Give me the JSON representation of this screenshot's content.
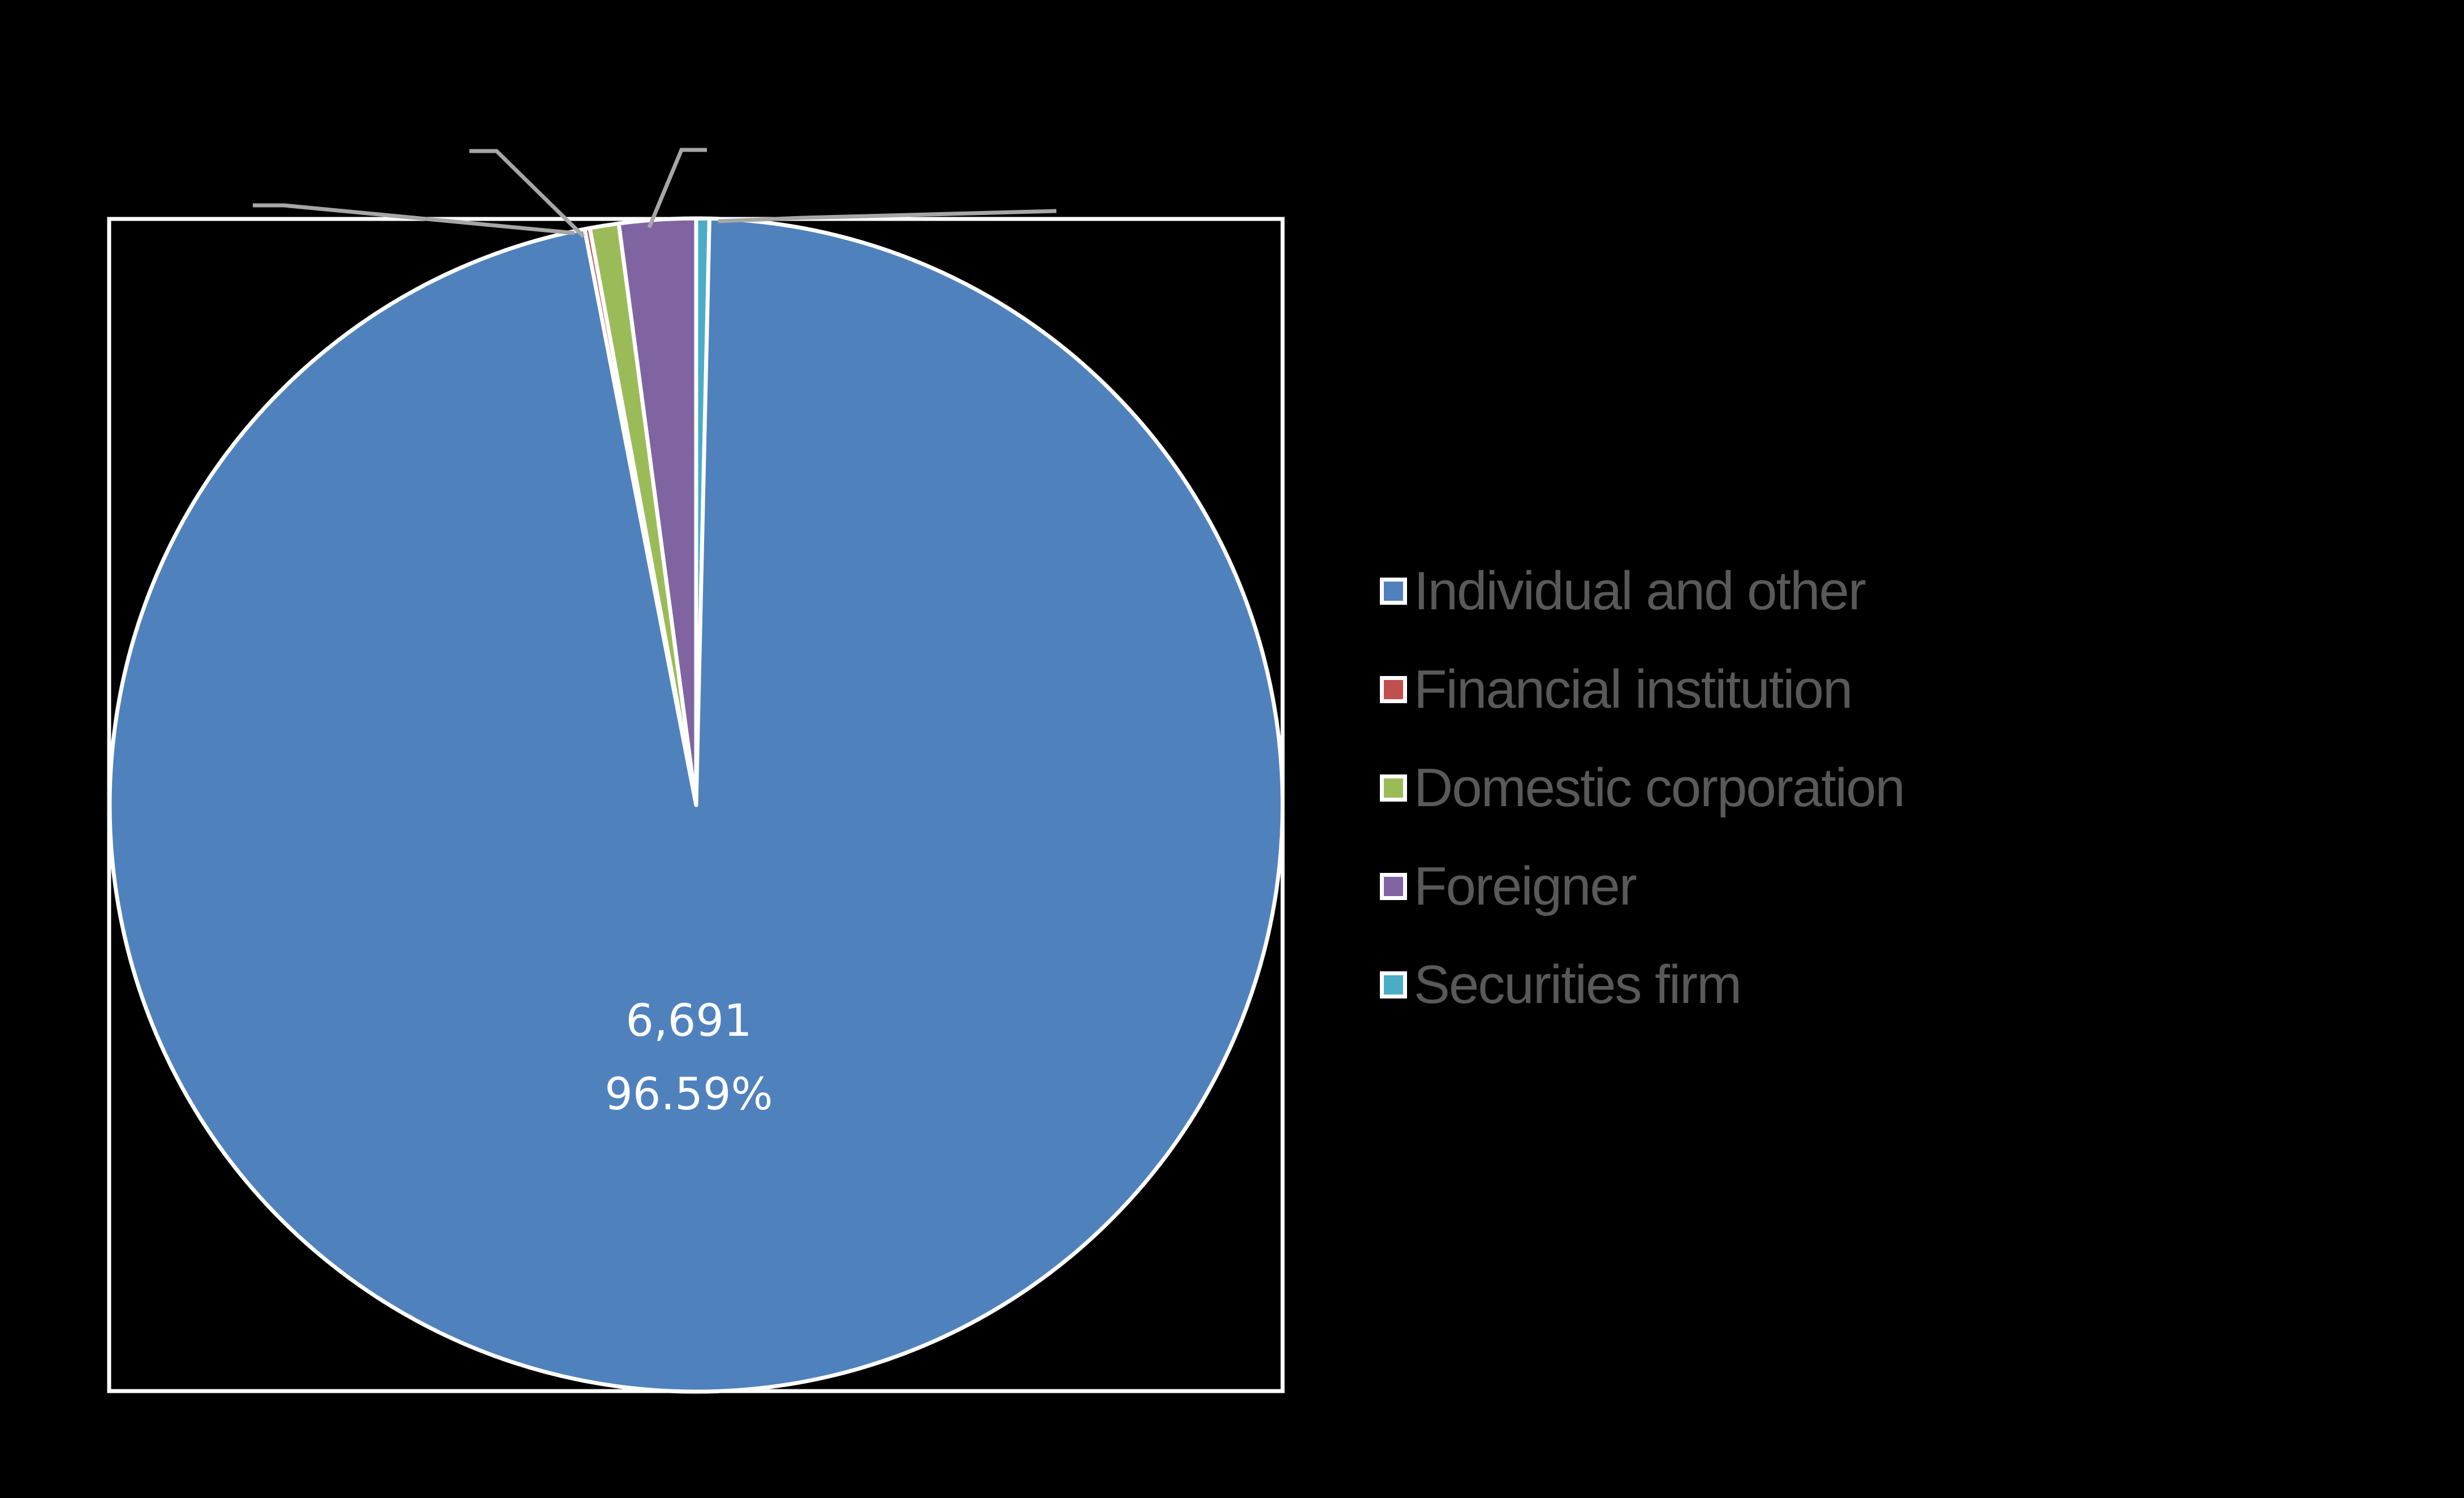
{
  "chart_data": {
    "type": "pie",
    "title": "",
    "categories": [
      "Individual and other",
      "Financial institution",
      "Domestic corporation",
      "Foreigner",
      "Securities firm"
    ],
    "values": [
      6691,
      10,
      55,
      146,
      25
    ],
    "percentages": [
      96.59,
      0.14,
      0.79,
      2.11,
      0.36
    ],
    "colors": [
      "#4f81bd",
      "#c0504d",
      "#9bbb59",
      "#8064a2",
      "#4bacc6"
    ],
    "visible_data_labels": [
      {
        "category": "Individual and other",
        "value": "6,691",
        "percent": "96.59%"
      }
    ],
    "notes": "Only the 'Individual and other' data label is visible; the small slices have leader lines but their labels are not rendered visibly. The values for the small slices are estimated from slice angles.",
    "legend_position": "right",
    "start_angle": "12 o'clock, slices clockwise: Individual and other, Financial institution, Domestic corporation, Foreigner, Securities firm"
  },
  "legend": {
    "items": [
      {
        "label": "Individual and other",
        "color": "#4f81bd"
      },
      {
        "label": "Financial institution",
        "color": "#c0504d"
      },
      {
        "label": "Domestic corporation",
        "color": "#9bbb59"
      },
      {
        "label": "Foreigner",
        "color": "#8064a2"
      },
      {
        "label": "Securities firm",
        "color": "#4bacc6"
      }
    ]
  },
  "data_labels": {
    "individual_value": "6,691",
    "individual_percent": "96.59%"
  },
  "style": {
    "background": "#000000",
    "plot_border": "#ffffff",
    "leader_line": "#a6a6a6",
    "legend_text": "#595959",
    "label_text": "#ffffff"
  }
}
